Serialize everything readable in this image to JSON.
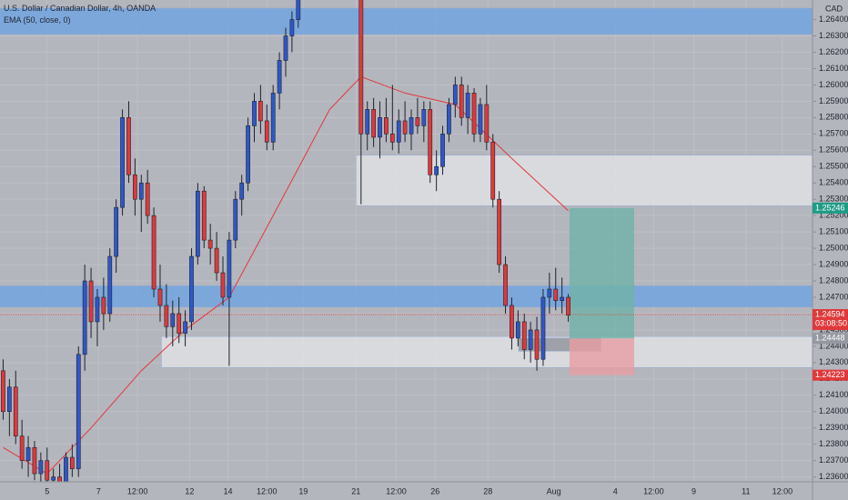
{
  "chart_data": {
    "type": "candlestick",
    "title": "U.S. Dollar / Canadian Dollar, 4h, OANDA",
    "indicator": "EMA (50, close, 0)",
    "currency": "CAD",
    "ylim": [
      1.2357,
      1.2652
    ],
    "xlim": [
      -0.5,
      128.9
    ],
    "yticks": [
      {
        "value": 1.236,
        "label": "1.23600"
      },
      {
        "value": 1.237,
        "label": "1.23700"
      },
      {
        "value": 1.238,
        "label": "1.23800"
      },
      {
        "value": 1.239,
        "label": "1.23900"
      },
      {
        "value": 1.24,
        "label": "1.24000"
      },
      {
        "value": 1.241,
        "label": "1.24100"
      },
      {
        "value": 1.242,
        "label": "1.24200"
      },
      {
        "value": 1.243,
        "label": "1.24300"
      },
      {
        "value": 1.244,
        "label": "1.24400"
      },
      {
        "value": 1.245,
        "label": "1.24500"
      },
      {
        "value": 1.246,
        "label": "1.24600"
      },
      {
        "value": 1.247,
        "label": "1.24700"
      },
      {
        "value": 1.248,
        "label": "1.24800"
      },
      {
        "value": 1.249,
        "label": "1.24900"
      },
      {
        "value": 1.25,
        "label": "1.25000"
      },
      {
        "value": 1.251,
        "label": "1.25100"
      },
      {
        "value": 1.252,
        "label": "1.25200"
      },
      {
        "value": 1.253,
        "label": "1.25300"
      },
      {
        "value": 1.254,
        "label": "1.25400"
      },
      {
        "value": 1.255,
        "label": "1.25500"
      },
      {
        "value": 1.256,
        "label": "1.25600"
      },
      {
        "value": 1.257,
        "label": "1.25700"
      },
      {
        "value": 1.258,
        "label": "1.25800"
      },
      {
        "value": 1.259,
        "label": "1.25900"
      },
      {
        "value": 1.26,
        "label": "1.26000"
      },
      {
        "value": 1.261,
        "label": "1.26100"
      },
      {
        "value": 1.262,
        "label": "1.26200"
      },
      {
        "value": 1.263,
        "label": "1.26300"
      },
      {
        "value": 1.264,
        "label": "1.26400"
      }
    ],
    "xticks": [
      {
        "value": 7,
        "label": "5"
      },
      {
        "value": 15.2,
        "label": "7"
      },
      {
        "value": 21.4,
        "label": "12:00"
      },
      {
        "value": 29.7,
        "label": "12"
      },
      {
        "value": 35.8,
        "label": "14"
      },
      {
        "value": 42,
        "label": "12:00"
      },
      {
        "value": 47.8,
        "label": "19"
      },
      {
        "value": 56.2,
        "label": "21"
      },
      {
        "value": 62.6,
        "label": "12:00"
      },
      {
        "value": 68.8,
        "label": "26"
      },
      {
        "value": 77.2,
        "label": "28"
      },
      {
        "value": 87.7,
        "label": "Aug"
      },
      {
        "value": 97.5,
        "label": "4"
      },
      {
        "value": 103.6,
        "label": "12:00"
      },
      {
        "value": 110,
        "label": "9"
      },
      {
        "value": 118.3,
        "label": "11"
      },
      {
        "value": 124.1,
        "label": "12:00"
      }
    ],
    "grid": true,
    "up_color": "#2f57c9",
    "down_color": "#e0393b",
    "x": [
      0,
      1,
      2,
      3,
      4,
      5,
      6,
      7,
      8,
      9,
      10,
      11,
      12,
      13,
      14,
      15,
      16,
      17,
      18,
      19,
      20,
      21,
      22,
      23,
      24,
      25,
      26,
      27,
      28,
      29,
      30,
      31,
      32,
      33,
      34,
      35,
      36,
      37,
      38,
      39,
      40,
      41,
      42,
      43,
      44,
      45,
      46,
      47,
      57,
      58,
      59,
      60,
      61,
      62,
      63,
      64,
      65,
      66,
      67,
      68,
      69,
      70,
      71,
      72,
      73,
      74,
      75,
      76,
      77,
      78,
      79,
      80,
      81,
      82,
      83,
      84,
      85,
      86,
      87,
      88,
      89,
      90
    ],
    "open": [
      1.2425,
      1.24,
      1.2415,
      1.2385,
      1.237,
      1.2378,
      1.2362,
      1.237,
      1.2358,
      1.236,
      1.2356,
      1.2372,
      1.2365,
      1.2435,
      1.248,
      1.2455,
      1.247,
      1.246,
      1.2495,
      1.2525,
      1.258,
      1.2545,
      1.253,
      1.254,
      1.252,
      1.2475,
      1.2465,
      1.2452,
      1.246,
      1.2448,
      1.2455,
      1.2495,
      1.2535,
      1.2505,
      1.25,
      1.2485,
      1.247,
      1.2505,
      1.253,
      1.254,
      1.2575,
      1.259,
      1.2578,
      1.2565,
      1.2595,
      1.2615,
      1.263,
      1.264,
      1.267,
      1.257,
      1.2585,
      1.2568,
      1.258,
      1.257,
      1.2565,
      1.2578,
      1.257,
      1.258,
      1.2575,
      1.2585,
      1.2545,
      1.255,
      1.257,
      1.2588,
      1.26,
      1.258,
      1.2595,
      1.257,
      1.2588,
      1.2565,
      1.253,
      1.249,
      1.2465,
      1.2445,
      1.2455,
      1.2438,
      1.245,
      1.2432,
      1.247,
      1.2475,
      1.2468,
      1.247
    ],
    "high": [
      1.2432,
      1.242,
      1.2425,
      1.2395,
      1.2385,
      1.2382,
      1.2375,
      1.2378,
      1.2365,
      1.2368,
      1.2375,
      1.238,
      1.244,
      1.249,
      1.2488,
      1.2475,
      1.2482,
      1.25,
      1.253,
      1.2585,
      1.259,
      1.2555,
      1.2545,
      1.2548,
      1.2525,
      1.249,
      1.2478,
      1.2468,
      1.247,
      1.2462,
      1.25,
      1.254,
      1.2538,
      1.2515,
      1.251,
      1.2495,
      1.251,
      1.2535,
      1.2545,
      1.258,
      1.2595,
      1.26,
      1.2588,
      1.26,
      1.262,
      1.2635,
      1.2645,
      1.2665,
      1.267,
      1.259,
      1.2592,
      1.259,
      1.2592,
      1.26,
      1.2585,
      1.259,
      1.2585,
      1.2592,
      1.259,
      1.259,
      1.256,
      1.2575,
      1.2592,
      1.2605,
      1.2605,
      1.26,
      1.2598,
      1.2592,
      1.26,
      1.257,
      1.2535,
      1.2495,
      1.247,
      1.2462,
      1.246,
      1.2455,
      1.2458,
      1.2475,
      1.2485,
      1.2488,
      1.2482,
      1.2472
    ],
    "low": [
      1.2395,
      1.2385,
      1.238,
      1.2365,
      1.236,
      1.2358,
      1.2352,
      1.2355,
      1.235,
      1.2352,
      1.2352,
      1.236,
      1.236,
      1.2425,
      1.2445,
      1.244,
      1.245,
      1.2455,
      1.2485,
      1.252,
      1.254,
      1.252,
      1.251,
      1.2515,
      1.247,
      1.2455,
      1.2445,
      1.244,
      1.2442,
      1.244,
      1.245,
      1.249,
      1.25,
      1.249,
      1.248,
      1.2465,
      1.2428,
      1.25,
      1.252,
      1.2535,
      1.2565,
      1.257,
      1.256,
      1.256,
      1.2585,
      1.2605,
      1.262,
      1.2635,
      1.2527,
      1.256,
      1.2562,
      1.2555,
      1.2565,
      1.256,
      1.2558,
      1.2565,
      1.256,
      1.257,
      1.2565,
      1.254,
      1.2535,
      1.2545,
      1.2565,
      1.258,
      1.2575,
      1.257,
      1.2565,
      1.2565,
      1.256,
      1.2525,
      1.2485,
      1.246,
      1.2438,
      1.244,
      1.2432,
      1.243,
      1.2425,
      1.2428,
      1.246,
      1.2462,
      1.246,
      1.2455
    ],
    "close": [
      1.24,
      1.2415,
      1.2385,
      1.237,
      1.2378,
      1.2362,
      1.237,
      1.2358,
      1.236,
      1.2356,
      1.2372,
      1.2365,
      1.2435,
      1.248,
      1.2455,
      1.247,
      1.246,
      1.2495,
      1.2525,
      1.258,
      1.2545,
      1.253,
      1.254,
      1.252,
      1.2475,
      1.2465,
      1.2452,
      1.246,
      1.2448,
      1.2455,
      1.2495,
      1.2535,
      1.2505,
      1.25,
      1.2485,
      1.247,
      1.2505,
      1.253,
      1.254,
      1.2575,
      1.259,
      1.2578,
      1.2565,
      1.2595,
      1.2615,
      1.263,
      1.264,
      1.266,
      1.257,
      1.2585,
      1.2568,
      1.258,
      1.257,
      1.2565,
      1.2578,
      1.257,
      1.258,
      1.2575,
      1.2585,
      1.2545,
      1.255,
      1.257,
      1.2588,
      1.26,
      1.258,
      1.2595,
      1.257,
      1.2588,
      1.2565,
      1.253,
      1.249,
      1.2465,
      1.2445,
      1.2455,
      1.2438,
      1.245,
      1.2432,
      1.247,
      1.2475,
      1.2468,
      1.247,
      1.2459
    ],
    "ema": {
      "color": "#e0393b",
      "x": [
        0,
        7,
        14,
        22,
        29,
        36,
        43,
        52,
        57,
        64,
        72,
        81,
        90
      ],
      "values": [
        1.2378,
        1.2362,
        1.239,
        1.2425,
        1.245,
        1.247,
        1.252,
        1.2585,
        1.2605,
        1.2595,
        1.2588,
        1.2555,
        1.2523
      ]
    },
    "zones": [
      {
        "y": [
          1.2631,
          1.2647
        ],
        "x": [
          -0.5,
          128.9
        ],
        "color": "#6aa2e6"
      },
      {
        "y": [
          1.2464,
          1.2477
        ],
        "x": [
          -0.5,
          128.9
        ],
        "color": "#6aa2e6"
      },
      {
        "y": [
          1.2526,
          1.2557
        ],
        "x": [
          56.2,
          128.9
        ],
        "color": "#e4e5ea"
      },
      {
        "y": [
          1.2427,
          1.2446
        ],
        "x": [
          25.2,
          128.9
        ],
        "color": "#e4e5ea"
      },
      {
        "y": [
          1.2437,
          1.2445
        ],
        "x": [
          82.1,
          95.2
        ],
        "color": "#8c8e95"
      }
    ],
    "position": {
      "entry": 1.24448,
      "target": 1.25246,
      "stop": 1.24223,
      "x": [
        90.2,
        100.5
      ],
      "profit_color": "#6fb3a8",
      "loss_color": "#e79ea3"
    },
    "last_price": {
      "value": 1.24594,
      "countdown": "03:08:50",
      "color": "#e0393b"
    },
    "price_labels": [
      {
        "value": 1.25246,
        "color": "#1e9b86"
      },
      {
        "value": 1.24448,
        "color": "#9598a1"
      },
      {
        "value": 1.24223,
        "color": "#e0393b"
      }
    ]
  }
}
